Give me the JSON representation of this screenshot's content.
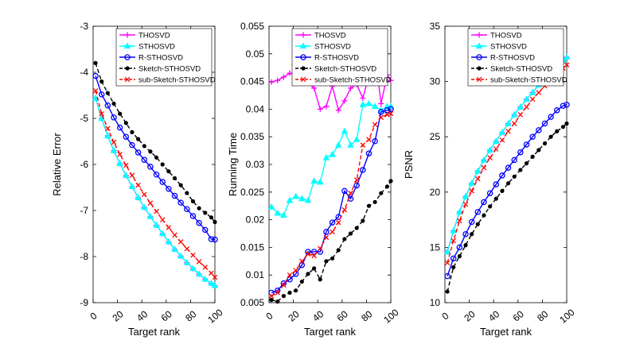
{
  "figure": {
    "xlabel_common": "Target rank"
  },
  "chart_data": [
    {
      "type": "line",
      "title": "",
      "xlabel": "Target rank",
      "ylabel": "Relative Error",
      "xlim": [
        0,
        100
      ],
      "ylim": [
        -9,
        -3
      ],
      "xticks": [
        0,
        20,
        40,
        60,
        80,
        100
      ],
      "yticks": [
        -9,
        -8,
        -7,
        -6,
        -5,
        -4,
        -3
      ],
      "legend": "top-right",
      "x": [
        2,
        7,
        12,
        17,
        22,
        27,
        32,
        37,
        42,
        47,
        52,
        57,
        62,
        67,
        72,
        77,
        82,
        87,
        92,
        97,
        100
      ],
      "series": [
        {
          "name": "THOSVD",
          "values": [
            -4.56,
            -5.0,
            -5.38,
            -5.7,
            -5.98,
            -6.24,
            -6.48,
            -6.72,
            -6.93,
            -7.13,
            -7.32,
            -7.5,
            -7.68,
            -7.84,
            -7.99,
            -8.13,
            -8.26,
            -8.38,
            -8.49,
            -8.58,
            -8.63
          ]
        },
        {
          "name": "STHOSVD",
          "values": [
            -4.56,
            -5.0,
            -5.38,
            -5.7,
            -5.98,
            -6.24,
            -6.48,
            -6.72,
            -6.93,
            -7.13,
            -7.32,
            -7.5,
            -7.68,
            -7.84,
            -7.99,
            -8.13,
            -8.26,
            -8.38,
            -8.49,
            -8.58,
            -8.63
          ]
        },
        {
          "name": "R-STHOSVD",
          "values": [
            -4.08,
            -4.48,
            -4.72,
            -4.98,
            -5.2,
            -5.4,
            -5.58,
            -5.74,
            -5.9,
            -6.05,
            -6.22,
            -6.38,
            -6.53,
            -6.68,
            -6.83,
            -6.97,
            -7.12,
            -7.27,
            -7.42,
            -7.62,
            -7.63
          ]
        },
        {
          "name": "Sketch-STHOSVD",
          "values": [
            -3.8,
            -4.2,
            -4.45,
            -4.68,
            -4.9,
            -5.1,
            -5.3,
            -5.45,
            -5.6,
            -5.72,
            -5.85,
            -6.0,
            -6.15,
            -6.3,
            -6.45,
            -6.62,
            -6.8,
            -6.95,
            -7.05,
            -7.15,
            -7.25
          ]
        },
        {
          "name": "sub-Sketch-STHOSVD",
          "values": [
            -4.4,
            -4.9,
            -5.22,
            -5.52,
            -5.78,
            -6.02,
            -6.24,
            -6.45,
            -6.65,
            -6.84,
            -7.02,
            -7.2,
            -7.37,
            -7.53,
            -7.68,
            -7.83,
            -7.97,
            -8.11,
            -8.23,
            -8.36,
            -8.45
          ]
        }
      ]
    },
    {
      "type": "line",
      "title": "",
      "xlabel": "Target rank",
      "ylabel": "Running Time",
      "xlim": [
        0,
        100
      ],
      "ylim": [
        0.005,
        0.055
      ],
      "xticks": [
        0,
        20,
        40,
        60,
        80,
        100
      ],
      "yticks": [
        0.005,
        0.01,
        0.015,
        0.02,
        0.025,
        0.03,
        0.035,
        0.04,
        0.045,
        0.05,
        0.055
      ],
      "legend": "top-right",
      "x": [
        2,
        7,
        12,
        17,
        22,
        27,
        32,
        37,
        42,
        47,
        52,
        57,
        62,
        67,
        72,
        77,
        82,
        87,
        92,
        97,
        100
      ],
      "series": [
        {
          "name": "THOSVD",
          "values": [
            0.0449,
            0.0452,
            0.0458,
            0.0465,
            0.0462,
            0.0455,
            0.0448,
            0.0438,
            0.04,
            0.0405,
            0.0442,
            0.0398,
            0.0415,
            0.0438,
            0.0445,
            0.042,
            0.046,
            0.0502,
            0.041,
            0.0462,
            0.0452
          ]
        },
        {
          "name": "STHOSVD",
          "values": [
            0.0223,
            0.0212,
            0.0208,
            0.0235,
            0.0242,
            0.0238,
            0.0235,
            0.027,
            0.0268,
            0.0312,
            0.0318,
            0.0335,
            0.036,
            0.0335,
            0.0345,
            0.0408,
            0.041,
            0.0405,
            0.0398,
            0.0405,
            0.0405
          ]
        },
        {
          "name": "R-STHOSVD",
          "values": [
            0.0068,
            0.0072,
            0.0085,
            0.0092,
            0.0102,
            0.0118,
            0.0142,
            0.0142,
            0.0142,
            0.0178,
            0.0195,
            0.0205,
            0.0252,
            0.0238,
            0.0262,
            0.029,
            0.032,
            0.0342,
            0.0395,
            0.0398,
            0.04
          ]
        },
        {
          "name": "Sketch-STHOSVD",
          "values": [
            0.0055,
            0.0052,
            0.0062,
            0.0068,
            0.0072,
            0.0088,
            0.0102,
            0.0112,
            0.0092,
            0.0125,
            0.013,
            0.0145,
            0.0165,
            0.0175,
            0.0185,
            0.0198,
            0.0225,
            0.0232,
            0.0248,
            0.026,
            0.027
          ]
        },
        {
          "name": "sub-Sketch-STHOSVD",
          "values": [
            0.0062,
            0.0068,
            0.0082,
            0.01,
            0.0108,
            0.0125,
            0.0138,
            0.0135,
            0.0148,
            0.0168,
            0.0178,
            0.0195,
            0.0218,
            0.0248,
            0.0272,
            0.0335,
            0.0345,
            0.0372,
            0.0385,
            0.039,
            0.0392
          ]
        }
      ]
    },
    {
      "type": "line",
      "title": "",
      "xlabel": "Target rank",
      "ylabel": "PSNR",
      "xlim": [
        0,
        100
      ],
      "ylim": [
        10,
        35
      ],
      "xticks": [
        0,
        20,
        40,
        60,
        80,
        100
      ],
      "yticks": [
        10,
        15,
        20,
        25,
        30,
        35
      ],
      "legend": "top-right",
      "x": [
        2,
        7,
        12,
        17,
        22,
        27,
        32,
        37,
        42,
        47,
        52,
        57,
        62,
        67,
        72,
        77,
        82,
        87,
        92,
        97,
        100
      ],
      "series": [
        {
          "name": "THOSVD",
          "values": [
            14.6,
            16.5,
            18.2,
            19.6,
            20.8,
            21.9,
            22.9,
            23.8,
            24.6,
            25.4,
            26.2,
            27.0,
            27.7,
            28.4,
            29.0,
            29.7,
            30.3,
            30.9,
            31.4,
            31.9,
            32.2
          ]
        },
        {
          "name": "STHOSVD",
          "values": [
            14.6,
            16.5,
            18.2,
            19.6,
            20.8,
            21.9,
            22.9,
            23.8,
            24.6,
            25.4,
            26.2,
            27.0,
            27.7,
            28.4,
            29.0,
            29.7,
            30.3,
            30.9,
            31.4,
            31.9,
            32.2
          ]
        },
        {
          "name": "R-STHOSVD",
          "values": [
            12.4,
            14.0,
            15.0,
            16.2,
            17.3,
            18.2,
            19.1,
            19.9,
            20.7,
            21.5,
            22.2,
            22.9,
            23.6,
            24.3,
            25.0,
            25.6,
            26.2,
            26.8,
            27.4,
            27.8,
            27.9
          ]
        },
        {
          "name": "Sketch-STHOSVD",
          "values": [
            11.0,
            13.2,
            14.2,
            15.2,
            16.2,
            17.1,
            17.9,
            18.7,
            19.4,
            20.1,
            20.8,
            21.4,
            22.0,
            22.6,
            23.2,
            23.8,
            24.4,
            25.0,
            25.5,
            25.9,
            26.2
          ]
        },
        {
          "name": "sub-Sketch-STHOSVD",
          "values": [
            13.6,
            15.6,
            17.4,
            18.9,
            20.1,
            21.2,
            22.2,
            23.1,
            23.9,
            24.7,
            25.5,
            26.2,
            27.0,
            27.7,
            28.4,
            29.0,
            29.6,
            30.2,
            30.7,
            31.2,
            31.5
          ]
        }
      ]
    }
  ],
  "legend_entries": [
    "THOSVD",
    "STHOSVD",
    "R-STHOSVD",
    "Sketch-STHOSVD",
    "sub-Sketch-STHOSVD"
  ],
  "series_colors": {
    "THOSVD": "#ff00ff",
    "STHOSVD": "#00ffff",
    "R-STHOSVD": "#0000ff",
    "Sketch-STHOSVD": "#000000",
    "sub-Sketch-STHOSVD": "#ff0000"
  },
  "series_markers": {
    "THOSVD": "plus",
    "STHOSVD": "triangle",
    "R-STHOSVD": "circle",
    "Sketch-STHOSVD": "dot",
    "sub-Sketch-STHOSVD": "cross"
  },
  "series_dashed": {
    "THOSVD": false,
    "STHOSVD": false,
    "R-STHOSVD": false,
    "Sketch-STHOSVD": true,
    "sub-Sketch-STHOSVD": true
  }
}
